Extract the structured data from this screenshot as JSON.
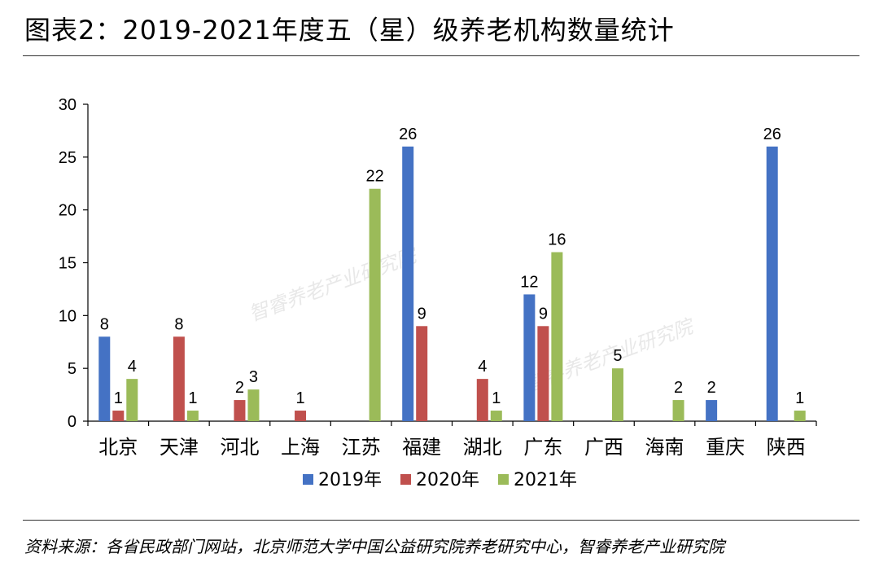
{
  "header": {
    "title": "图表2：2019-2021年度五（星）级养老机构数量统计"
  },
  "footer": {
    "source": "资料来源：各省民政部门网站，北京师范大学中国公益研究院养老研究中心，智睿养老产业研究院"
  },
  "watermark": {
    "text": "智睿养老产业研究院"
  },
  "colors": {
    "s2019": "#4472C4",
    "s2020": "#C0504D",
    "s2021": "#9BBB59"
  },
  "chart_data": {
    "type": "bar",
    "title": "2019-2021年度五（星）级养老机构数量统计",
    "xlabel": "",
    "ylabel": "",
    "ylim": [
      0,
      30
    ],
    "yticks": [
      0,
      5,
      10,
      15,
      20,
      25,
      30
    ],
    "grid": false,
    "legend": "bottom",
    "categories": [
      "北京",
      "天津",
      "河北",
      "上海",
      "江苏",
      "福建",
      "湖北",
      "广东",
      "广西",
      "海南",
      "重庆",
      "陕西"
    ],
    "series": [
      {
        "name": "2019年",
        "color": "#4472C4",
        "values": [
          8,
          null,
          null,
          null,
          null,
          26,
          null,
          12,
          null,
          null,
          2,
          26
        ]
      },
      {
        "name": "2020年",
        "color": "#C0504D",
        "values": [
          1,
          8,
          2,
          1,
          null,
          9,
          4,
          9,
          null,
          null,
          null,
          null
        ]
      },
      {
        "name": "2021年",
        "color": "#9BBB59",
        "values": [
          4,
          1,
          3,
          null,
          22,
          null,
          1,
          16,
          5,
          2,
          null,
          1
        ]
      }
    ],
    "data_labels": [
      [
        8,
        null,
        null,
        null,
        null,
        26,
        null,
        12,
        null,
        null,
        2,
        26
      ],
      [
        1,
        8,
        2,
        1,
        null,
        9,
        4,
        9,
        null,
        null,
        null,
        null
      ],
      [
        4,
        1,
        3,
        null,
        22,
        null,
        1,
        16,
        5,
        2,
        null,
        1
      ]
    ]
  }
}
